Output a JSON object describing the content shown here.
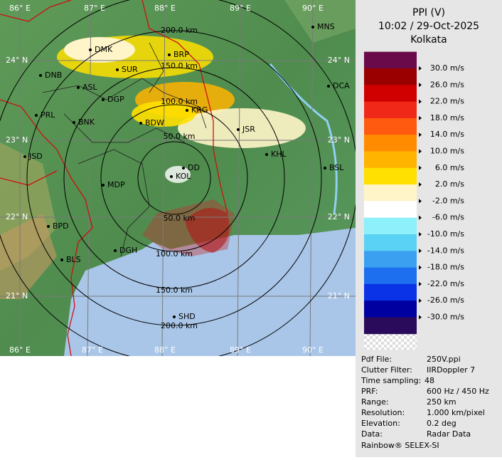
{
  "map": {
    "lon_labels_top": [
      "86° E",
      "87° E",
      "88° E",
      "89° E",
      "90° E"
    ],
    "lon_labels_bottom": [
      "86° E",
      "87° E",
      "88° E",
      "89° E",
      "90° E"
    ],
    "lat_labels_left": [
      "24° N",
      "23° N",
      "22° N",
      "21° N"
    ],
    "lat_labels_right": [
      "24° N",
      "23° N",
      "22° N",
      "21° N"
    ],
    "cities": [
      "MNS",
      "DMK",
      "BRP",
      "DNB",
      "SUR",
      "ASL",
      "DCA",
      "DGP",
      "KRG",
      "PRL",
      "BNK",
      "BDW",
      "JSR",
      "KHL",
      "JSD",
      "DD",
      "KOL",
      "BSL",
      "MDP",
      "DGH",
      "BPD",
      "BLS",
      "SHD"
    ],
    "range_labels": [
      "200.0 km",
      "150.0 km",
      "100.0 km",
      "50.0 km",
      "50.0 km",
      "100.0 km",
      "150.0 km",
      "200.0 km"
    ]
  },
  "panel": {
    "title": "PPI (V)",
    "time": "10:02 / 29-Oct-2025",
    "site": "Kolkata",
    "colorbar": {
      "labels": [
        "30.0 m/s",
        "26.0 m/s",
        "22.0 m/s",
        "18.0 m/s",
        "14.0 m/s",
        "10.0 m/s",
        "6.0 m/s",
        "2.0 m/s",
        "-2.0 m/s",
        "-6.0 m/s",
        "-10.0 m/s",
        "-14.0 m/s",
        "-18.0 m/s",
        "-22.0 m/s",
        "-26.0 m/s",
        "-30.0 m/s"
      ],
      "colors": [
        "#6a0a4a",
        "#9a0000",
        "#d00000",
        "#f02818",
        "#ff5a10",
        "#ff8c00",
        "#ffb400",
        "#ffe000",
        "#fff5c8",
        "#ffffff",
        "#8ef0fa",
        "#5ad2f5",
        "#3ca0f0",
        "#1e6ef0",
        "#0a32e6",
        "#0000a0",
        "#2a0a5a"
      ]
    },
    "info": [
      [
        "Pdf File:",
        "250V.ppi"
      ],
      [
        "Clutter Filter:",
        "IIRDoppler 7"
      ],
      [
        "Time sampling:",
        "48"
      ],
      [
        "PRF:",
        "600 Hz / 450 Hz"
      ],
      [
        "Range:",
        "250 km"
      ],
      [
        "Resolution:",
        "1.000 km/pixel"
      ],
      [
        "Elevation:",
        "0.2 deg"
      ],
      [
        "Data:",
        "Radar Data"
      ]
    ],
    "footer": "Rainbow® SELEX-SI"
  }
}
